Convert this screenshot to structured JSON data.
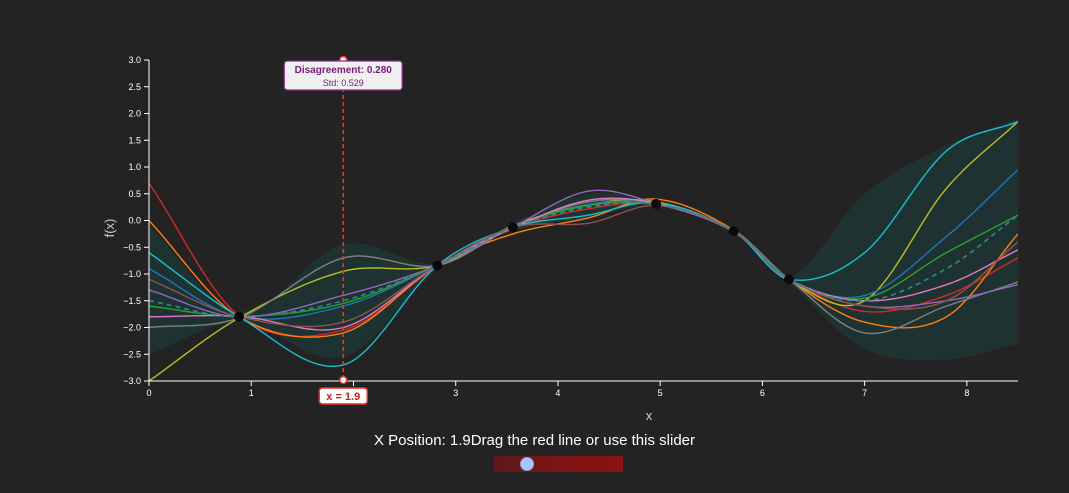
{
  "chart_data": {
    "type": "line",
    "xlabel": "x",
    "ylabel": "f(x)",
    "xlim": [
      0,
      8.5
    ],
    "ylim": [
      -3.0,
      3.0
    ],
    "x_ticks": [
      0,
      1,
      2,
      3,
      4,
      5,
      6,
      7,
      8
    ],
    "y_ticks": [
      -3.0,
      -2.5,
      -2.0,
      -1.5,
      -1.0,
      -0.5,
      0.0,
      0.5,
      1.0,
      1.5,
      2.0,
      2.5,
      3.0
    ],
    "y_tick_labels": [
      "−3.0",
      "−2.5",
      "−2.0",
      "−1.5",
      "−1.0",
      "−0.5",
      "0.0",
      "0.5",
      "1.0",
      "1.5",
      "2.0",
      "2.5",
      "3.0"
    ],
    "observations": {
      "x": [
        0.88,
        2.82,
        3.56,
        4.96,
        5.72,
        6.26
      ],
      "y": [
        -1.8,
        -0.84,
        -0.13,
        0.31,
        -0.2,
        -1.1
      ]
    },
    "mean": {
      "x": [
        0,
        0.88,
        1.9,
        2.82,
        3.56,
        4.3,
        4.96,
        5.72,
        6.26,
        7.0,
        7.8,
        8.5
      ],
      "y": [
        -1.5,
        -1.8,
        -1.5,
        -0.84,
        -0.13,
        0.25,
        0.31,
        -0.2,
        -1.1,
        -1.5,
        -0.9,
        0.1
      ]
    },
    "band": {
      "x": [
        0,
        0.88,
        1.9,
        2.82,
        3.56,
        4.3,
        4.96,
        5.72,
        6.26,
        7.0,
        7.8,
        8.5
      ],
      "upper": [
        -0.1,
        -1.7,
        -0.45,
        -0.8,
        -0.05,
        0.5,
        0.35,
        -0.15,
        -1.05,
        0.5,
        1.4,
        1.9
      ],
      "lower": [
        -2.5,
        -1.9,
        -2.55,
        -0.9,
        -0.2,
        0.05,
        0.27,
        -0.25,
        -1.15,
        -2.4,
        -2.6,
        -2.3
      ]
    },
    "samples": [
      {
        "color": "#d62728",
        "x": [
          0,
          0.88,
          1.9,
          2.82,
          3.56,
          4.3,
          4.96,
          5.72,
          6.26,
          7.0,
          7.8,
          8.5
        ],
        "y": [
          0.7,
          -1.78,
          -2.05,
          -0.86,
          -0.15,
          0.22,
          0.3,
          -0.21,
          -1.09,
          -1.7,
          -1.4,
          -0.7
        ]
      },
      {
        "color": "#ff7f0e",
        "x": [
          0,
          0.88,
          1.9,
          2.82,
          3.56,
          4.3,
          4.96,
          5.72,
          6.26,
          7.0,
          7.8,
          8.5
        ],
        "y": [
          0.0,
          -1.8,
          -2.1,
          -0.84,
          -0.25,
          0.05,
          0.4,
          -0.18,
          -1.1,
          -1.9,
          -1.8,
          -0.25
        ]
      },
      {
        "color": "#bcbd22",
        "x": [
          0,
          0.88,
          1.9,
          2.82,
          3.56,
          4.3,
          4.96,
          5.72,
          6.26,
          7.0,
          7.8,
          8.5
        ],
        "y": [
          -3.0,
          -1.82,
          -0.95,
          -0.84,
          -0.1,
          0.3,
          0.35,
          -0.2,
          -1.11,
          -1.5,
          0.6,
          1.85
        ]
      },
      {
        "color": "#17becf",
        "x": [
          0,
          0.88,
          1.9,
          2.82,
          3.56,
          4.3,
          4.96,
          5.72,
          6.26,
          7.0,
          7.8,
          8.5
        ],
        "y": [
          -0.6,
          -1.8,
          -2.7,
          -0.84,
          -0.13,
          0.1,
          0.33,
          -0.2,
          -1.1,
          -0.6,
          1.3,
          1.85
        ]
      },
      {
        "color": "#7f7f7f",
        "x": [
          0,
          0.88,
          1.9,
          2.82,
          3.56,
          4.3,
          4.96,
          5.72,
          6.26,
          7.0,
          7.8,
          8.5
        ],
        "y": [
          -2.0,
          -1.82,
          -0.7,
          -0.84,
          -0.13,
          0.35,
          0.32,
          -0.19,
          -1.1,
          -2.1,
          -1.6,
          -1.15
        ]
      },
      {
        "color": "#1f77b4",
        "x": [
          0,
          0.88,
          1.9,
          2.82,
          3.56,
          4.3,
          4.96,
          5.72,
          6.26,
          7.0,
          7.8,
          8.5
        ],
        "y": [
          -0.9,
          -1.8,
          -1.6,
          -0.84,
          -0.13,
          0.3,
          0.31,
          -0.2,
          -1.1,
          -1.4,
          -0.3,
          0.95
        ]
      },
      {
        "color": "#2ca02c",
        "x": [
          0,
          0.88,
          1.9,
          2.82,
          3.56,
          4.3,
          4.96,
          5.72,
          6.26,
          7.0,
          7.8,
          8.5
        ],
        "y": [
          -1.6,
          -1.79,
          -1.55,
          -0.83,
          -0.12,
          0.28,
          0.3,
          -0.2,
          -1.1,
          -1.45,
          -0.6,
          0.1
        ]
      },
      {
        "color": "#9467bd",
        "x": [
          0,
          0.88,
          1.9,
          2.82,
          3.56,
          4.3,
          4.96,
          5.72,
          6.26,
          7.0,
          7.8,
          8.5
        ],
        "y": [
          -1.3,
          -1.8,
          -1.4,
          -0.84,
          -0.12,
          0.55,
          0.32,
          -0.21,
          -1.1,
          -1.6,
          -1.5,
          -1.2
        ]
      },
      {
        "color": "#e377c2",
        "x": [
          0,
          0.88,
          1.9,
          2.82,
          3.56,
          4.3,
          4.96,
          5.72,
          6.26,
          7.0,
          7.8,
          8.5
        ],
        "y": [
          -1.8,
          -1.79,
          -2.0,
          -0.84,
          -0.14,
          0.38,
          0.32,
          -0.2,
          -1.1,
          -1.5,
          -1.2,
          -0.55
        ]
      },
      {
        "color": "#8c564b",
        "x": [
          0,
          0.88,
          1.9,
          2.82,
          3.56,
          4.3,
          4.96,
          5.72,
          6.26,
          7.0,
          7.8,
          8.5
        ],
        "y": [
          -1.1,
          -1.8,
          -1.9,
          -0.84,
          -0.13,
          -0.05,
          0.28,
          -0.2,
          -1.1,
          -1.6,
          -1.5,
          -0.4
        ]
      }
    ],
    "cursor": {
      "x": 1.9,
      "x_label": "x = 1.9",
      "disagreement_label": "Disagreement: 0.280",
      "std_label": "Std: 0.529"
    },
    "colors": {
      "background": "#232323",
      "cursor": "#e8322c",
      "band": "#1c3a3a",
      "mean": "#2b8b8b",
      "tooltip_text": "#7a1a7a"
    }
  },
  "slider": {
    "label": "X Position: 1.9Drag the red line or use this slider",
    "value": 1.9,
    "min": 0,
    "max": 8.5
  }
}
